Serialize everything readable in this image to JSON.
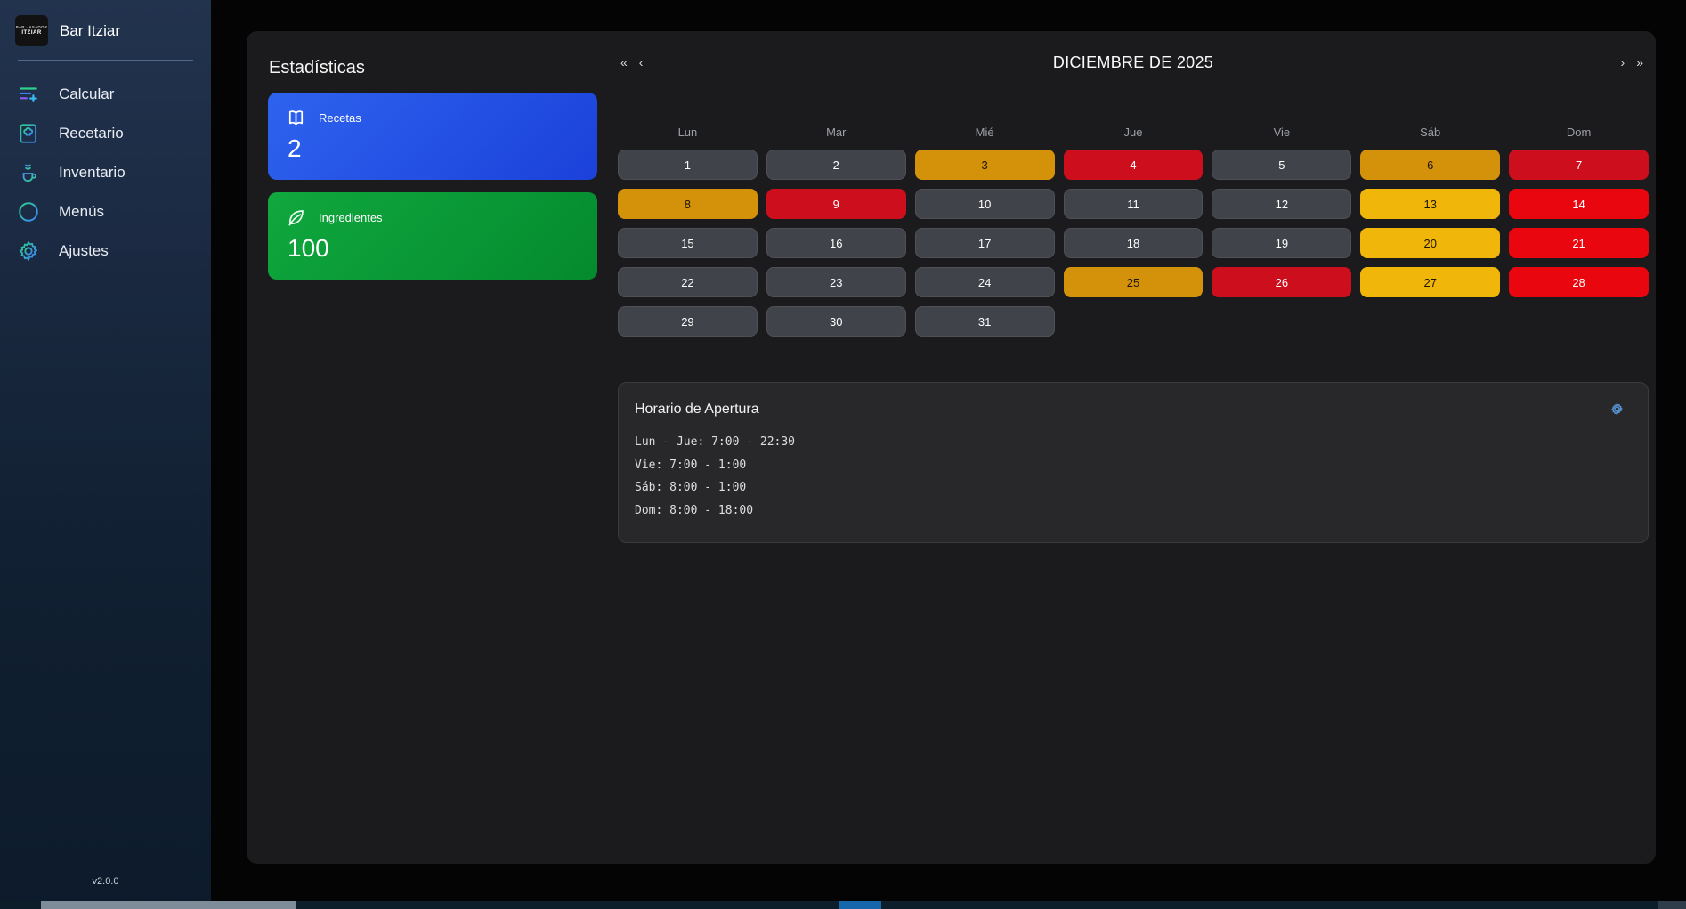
{
  "app": {
    "title": "Bar Itziar",
    "version": "v2.0.0",
    "logo_line1": "BAR · ASADOR",
    "logo_line2": "ITZIAR"
  },
  "sidebar": {
    "items": [
      {
        "label": "Calcular",
        "icon": "sliders-plus-icon"
      },
      {
        "label": "Recetario",
        "icon": "recipe-book-icon"
      },
      {
        "label": "Inventario",
        "icon": "inventory-cup-icon"
      },
      {
        "label": "Menús",
        "icon": "menu-circle-icon"
      },
      {
        "label": "Ajustes",
        "icon": "gear-icon"
      }
    ]
  },
  "stats": {
    "heading": "Estadísticas",
    "cards": [
      {
        "label": "Recetas",
        "value": "2",
        "icon": "book-icon",
        "gradient": [
          "#2e63ee",
          "#1b41da"
        ]
      },
      {
        "label": "Ingredientes",
        "value": "100",
        "icon": "leaf-icon",
        "gradient": [
          "#10a83e",
          "#048a2e"
        ]
      }
    ]
  },
  "calendar": {
    "title": "DICIEMBRE DE 2025",
    "nav": {
      "prev_year": "«",
      "prev_month": "‹",
      "next_month": "›",
      "next_year": "»"
    },
    "weekdays": [
      "Lun",
      "Mar",
      "Mié",
      "Jue",
      "Vie",
      "Sáb",
      "Dom"
    ],
    "colors": {
      "normal": "#41434a",
      "amber": "#d4920a",
      "yellow": "#f0b70a",
      "red_dark": "#cd0e1d",
      "red": "#ea060f"
    },
    "days": [
      {
        "day": 1,
        "state": "normal"
      },
      {
        "day": 2,
        "state": "normal"
      },
      {
        "day": 3,
        "state": "amber"
      },
      {
        "day": 4,
        "state": "red_dark"
      },
      {
        "day": 5,
        "state": "normal"
      },
      {
        "day": 6,
        "state": "amber"
      },
      {
        "day": 7,
        "state": "red_dark"
      },
      {
        "day": 8,
        "state": "amber"
      },
      {
        "day": 9,
        "state": "red_dark"
      },
      {
        "day": 10,
        "state": "normal"
      },
      {
        "day": 11,
        "state": "normal"
      },
      {
        "day": 12,
        "state": "normal"
      },
      {
        "day": 13,
        "state": "yellow"
      },
      {
        "day": 14,
        "state": "red"
      },
      {
        "day": 15,
        "state": "normal"
      },
      {
        "day": 16,
        "state": "normal"
      },
      {
        "day": 17,
        "state": "normal"
      },
      {
        "day": 18,
        "state": "normal"
      },
      {
        "day": 19,
        "state": "normal"
      },
      {
        "day": 20,
        "state": "yellow"
      },
      {
        "day": 21,
        "state": "red"
      },
      {
        "day": 22,
        "state": "normal"
      },
      {
        "day": 23,
        "state": "normal"
      },
      {
        "day": 24,
        "state": "normal"
      },
      {
        "day": 25,
        "state": "amber"
      },
      {
        "day": 26,
        "state": "red_dark"
      },
      {
        "day": 27,
        "state": "yellow"
      },
      {
        "day": 28,
        "state": "red"
      },
      {
        "day": 29,
        "state": "normal"
      },
      {
        "day": 30,
        "state": "normal"
      },
      {
        "day": 31,
        "state": "normal"
      }
    ]
  },
  "hours": {
    "title": "Horario de Apertura",
    "lines": [
      "Lun - Jue: 7:00 - 22:30",
      "Vie: 7:00 - 1:00",
      "Sáb: 8:00 - 1:00",
      "Dom: 8:00 - 18:00"
    ],
    "gear_color": "#5793d3"
  }
}
